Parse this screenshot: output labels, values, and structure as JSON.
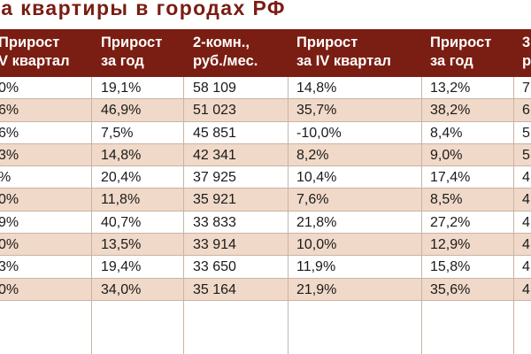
{
  "title": "на квартиры в городах РФ",
  "headers": [
    {
      "line1": "Прирост",
      "line2": "V квартал"
    },
    {
      "line1": "Прирост",
      "line2": "за год"
    },
    {
      "line1": "2-комн.,",
      "line2": "руб./мес."
    },
    {
      "line1": "Прирост",
      "line2": "за IV квартал"
    },
    {
      "line1": "Прирост",
      "line2": "за год"
    },
    {
      "line1": "3",
      "line2": "р"
    }
  ],
  "rows": [
    {
      "c0": "0%",
      "c1": "19,1%",
      "c2": "58 109",
      "c3": "14,8%",
      "c4": "13,2%",
      "c5": "7"
    },
    {
      "c0": "6%",
      "c1": "46,9%",
      "c2": "51 023",
      "c3": "35,7%",
      "c4": "38,2%",
      "c5": "6"
    },
    {
      "c0": "6%",
      "c1": "7,5%",
      "c2": "45 851",
      "c3": "-10,0%",
      "c4": "8,4%",
      "c5": "5"
    },
    {
      "c0": "3%",
      "c1": "14,8%",
      "c2": "42 341",
      "c3": "8,2%",
      "c4": "9,0%",
      "c5": "5"
    },
    {
      "c0": "%",
      "c1": "20,4%",
      "c2": "37 925",
      "c3": "10,4%",
      "c4": "17,4%",
      "c5": "4"
    },
    {
      "c0": "0%",
      "c1": "11,8%",
      "c2": "35 921",
      "c3": "7,6%",
      "c4": "8,5%",
      "c5": "4"
    },
    {
      "c0": "9%",
      "c1": "40,7%",
      "c2": "33 833",
      "c3": "21,8%",
      "c4": "27,2%",
      "c5": "4"
    },
    {
      "c0": "0%",
      "c1": "13,5%",
      "c2": "33 914",
      "c3": "10,0%",
      "c4": "12,9%",
      "c5": "4"
    },
    {
      "c0": "3%",
      "c1": "19,4%",
      "c2": "33 650",
      "c3": "11,9%",
      "c4": "15,8%",
      "c5": "4"
    },
    {
      "c0": "0%",
      "c1": "34,0%",
      "c2": "35 164",
      "c3": "21,9%",
      "c4": "35,6%",
      "c5": "4"
    }
  ]
}
